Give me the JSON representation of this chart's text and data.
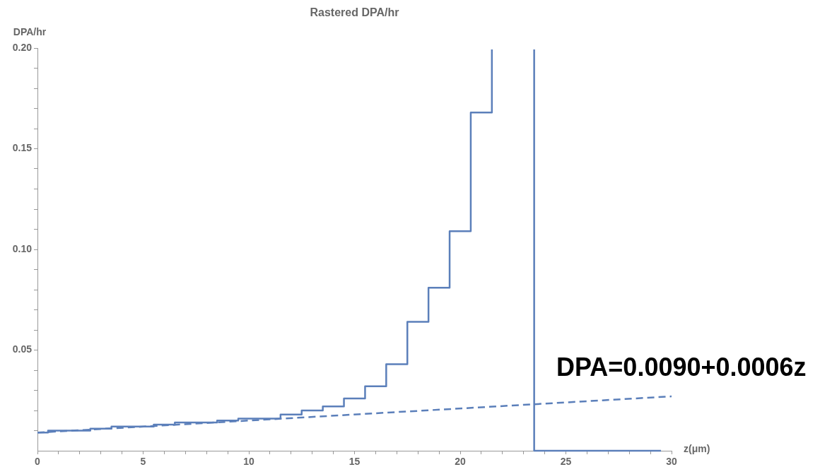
{
  "chart_data": {
    "type": "step",
    "title": "Rastered DPA/hr",
    "xlabel": "z(μm)",
    "ylabel": "DPA/hr",
    "annotations": [
      "DPA=0.0090+0.0006z"
    ],
    "xlim": [
      0,
      30
    ],
    "ylim": [
      0,
      0.2
    ],
    "xticks": [
      0,
      {
        "value": 1,
        "label": null
      },
      {
        "value": 2,
        "label": null
      },
      {
        "value": 3,
        "label": null
      },
      {
        "value": 4,
        "label": null
      },
      5,
      {
        "value": 6,
        "label": null
      },
      {
        "value": 7,
        "label": null
      },
      {
        "value": 8,
        "label": null
      },
      {
        "value": 9,
        "label": null
      },
      10,
      {
        "value": 11,
        "label": null
      },
      {
        "value": 12,
        "label": null
      },
      {
        "value": 13,
        "label": null
      },
      {
        "value": 14,
        "label": null
      },
      15,
      {
        "value": 16,
        "label": null
      },
      {
        "value": 17,
        "label": null
      },
      {
        "value": 18,
        "label": null
      },
      {
        "value": 19,
        "label": null
      },
      20,
      {
        "value": 21,
        "label": null
      },
      {
        "value": 22,
        "label": null
      },
      {
        "value": 23,
        "label": null
      },
      {
        "value": 24,
        "label": null
      },
      25,
      {
        "value": 26,
        "label": null
      },
      {
        "value": 27,
        "label": null
      },
      {
        "value": 28,
        "label": null
      },
      {
        "value": 29,
        "label": null
      },
      30
    ],
    "yticks": [
      {
        "value": 0.01,
        "label": null
      },
      {
        "value": 0.02,
        "label": null
      },
      {
        "value": 0.03,
        "label": null
      },
      {
        "value": 0.04,
        "label": null
      },
      {
        "value": 0.05,
        "label": "0.05"
      },
      {
        "value": 0.06,
        "label": null
      },
      {
        "value": 0.07,
        "label": null
      },
      {
        "value": 0.08,
        "label": null
      },
      {
        "value": 0.09,
        "label": null
      },
      {
        "value": 0.1,
        "label": "0.10"
      },
      {
        "value": 0.11,
        "label": null
      },
      {
        "value": 0.12,
        "label": null
      },
      {
        "value": 0.13,
        "label": null
      },
      {
        "value": 0.14,
        "label": null
      },
      {
        "value": 0.15,
        "label": "0.15"
      },
      {
        "value": 0.16,
        "label": null
      },
      {
        "value": 0.17,
        "label": null
      },
      {
        "value": 0.18,
        "label": null
      },
      {
        "value": 0.19,
        "label": null
      },
      {
        "value": 0.2,
        "label": "0.20"
      }
    ],
    "grid": false,
    "legend": false,
    "marker": "none",
    "series": [
      {
        "type": "step",
        "color": "#5b7fba",
        "line_style": "solid",
        "x": [
          0,
          0.5,
          1.5,
          2.5,
          3.5,
          4.5,
          5.5,
          6.5,
          7.5,
          8.5,
          9.5,
          10.5,
          11.5,
          12.5,
          13.5,
          14.5,
          15.5,
          16.5,
          17.5,
          18.5,
          19.5,
          20.5,
          21.5,
          23.5,
          29.5
        ],
        "values": [
          0.009,
          0.01,
          0.01,
          0.011,
          0.012,
          0.012,
          0.013,
          0.014,
          0.014,
          0.015,
          0.016,
          0.016,
          0.018,
          0.02,
          0.022,
          0.026,
          0.032,
          0.043,
          0.064,
          0.081,
          0.109,
          0.168,
          0.2,
          0,
          0
        ]
      },
      {
        "type": "line",
        "color": "#5b7fba",
        "line_style": "dashed",
        "x": [
          0,
          30
        ],
        "values": [
          0.009,
          0.027
        ]
      }
    ]
  }
}
